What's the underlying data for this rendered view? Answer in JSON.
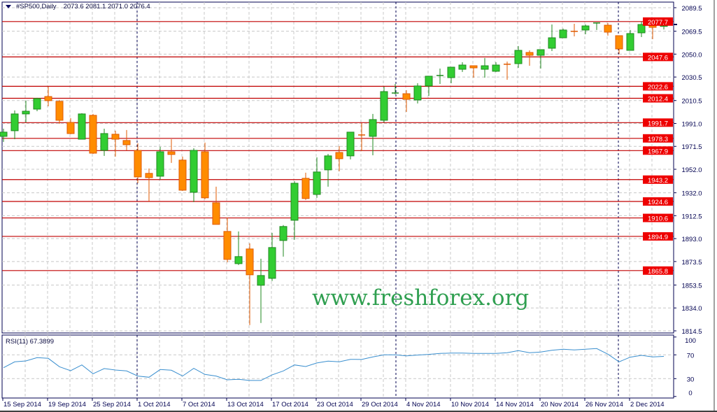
{
  "header": {
    "symbol": "#SP500,Daily",
    "ohlc": "2073.6 2081.1 2071.0 2076.4"
  },
  "watermark": "www.freshforex.org",
  "colors": {
    "bull_fill": "#32cd32",
    "bull_border": "#1f8a1f",
    "bear_fill": "#ff8c00",
    "bear_border": "#e05a00",
    "level_line": "#c00000",
    "level_label_bg": "#ee0000",
    "separator": "#000050",
    "grid": "#c8c8c8",
    "rsi_line": "#3a8fcf",
    "axis_text": "#000050"
  },
  "chart_data": [
    {
      "type": "candlestick",
      "title": "#SP500,Daily",
      "ylim": [
        1814.5,
        2089.5
      ],
      "yticks": [
        "2089.5",
        "2069.5",
        "2050.0",
        "2030.5",
        "2010.5",
        "1991.0",
        "1971.5",
        "1952.0",
        "1932.0",
        "1912.5",
        "1893.0",
        "1873.5",
        "1853.5",
        "1834.0",
        "1814.5"
      ],
      "x_labels": [
        "15 Sep 2014",
        "19 Sep 2014",
        "25 Sep 2014",
        "1 Oct 2014",
        "7 Oct 2014",
        "13 Oct 2014",
        "17 Oct 2014",
        "23 Oct 2014",
        "29 Oct 2014",
        "4 Nov 2014",
        "10 Nov 2014",
        "14 Nov 2014",
        "20 Nov 2014",
        "26 Nov 2014",
        "2 Dec 2014"
      ],
      "x_label_every": 4,
      "period_separators_at": [
        "1 Oct 2014",
        "3 Nov 2014",
        "1 Dec 2014"
      ],
      "levels": [
        "2077.7",
        "2047.6",
        "2022.6",
        "2012.4",
        "1991.7",
        "1978.3",
        "1967.9",
        "1943.2",
        "1924.6",
        "1910.6",
        "1894.9",
        "1865.8"
      ],
      "ohlc": [
        [
          1980.0,
          1986.5,
          1975.3,
          1983.6
        ],
        [
          1984.8,
          2002.1,
          1977.6,
          1999.1
        ],
        [
          1999.1,
          2010.4,
          1991.9,
          2001.4
        ],
        [
          2003.2,
          2012.8,
          2001.4,
          2012.2
        ],
        [
          2013.9,
          2022.3,
          2005.6,
          2010.4
        ],
        [
          2009.8,
          2011.0,
          1990.7,
          1993.7
        ],
        [
          1991.9,
          1995.5,
          1981.8,
          1982.4
        ],
        [
          1977.6,
          1999.7,
          1977.6,
          1999.1
        ],
        [
          1997.9,
          1999.1,
          1965.1,
          1965.7
        ],
        [
          1968.1,
          1986.5,
          1963.4,
          1982.4
        ],
        [
          1981.8,
          1984.8,
          1962.8,
          1977.6
        ],
        [
          1976.5,
          1985.4,
          1968.1,
          1972.9
        ],
        [
          1968.1,
          1974.1,
          1940.1,
          1945.5
        ],
        [
          1948.5,
          1952.7,
          1924.7,
          1944.9
        ],
        [
          1946.1,
          1971.1,
          1943.1,
          1966.9
        ],
        [
          1966.9,
          1977.6,
          1957.4,
          1964.6
        ],
        [
          1959.8,
          1962.8,
          1933.6,
          1934.2
        ],
        [
          1932.4,
          1969.9,
          1924.1,
          1968.1
        ],
        [
          1966.9,
          1974.7,
          1926.5,
          1927.7
        ],
        [
          1923.5,
          1937.2,
          1905.1,
          1905.1
        ],
        [
          1899.1,
          1911.0,
          1872.9,
          1875.3
        ],
        [
          1871.7,
          1899.1,
          1870.5,
          1877.7
        ],
        [
          1884.2,
          1889.0,
          1819.4,
          1862.2
        ],
        [
          1853.3,
          1875.9,
          1821.2,
          1861.6
        ],
        [
          1859.2,
          1897.9,
          1856.9,
          1885.4
        ],
        [
          1891.4,
          1904.5,
          1877.7,
          1903.3
        ],
        [
          1908.6,
          1941.9,
          1892.0,
          1940.1
        ],
        [
          1944.3,
          1949.1,
          1925.9,
          1927.1
        ],
        [
          1930.6,
          1962.2,
          1927.7,
          1949.7
        ],
        [
          1951.5,
          1965.1,
          1937.2,
          1963.4
        ],
        [
          1966.3,
          1971.7,
          1950.3,
          1961.0
        ],
        [
          1963.4,
          1983.6,
          1960.4,
          1983.6
        ],
        [
          1981.2,
          1991.3,
          1967.5,
          1981.0
        ],
        [
          1980.0,
          1999.1,
          1963.9,
          1994.3
        ],
        [
          1993.7,
          2022.3,
          1991.9,
          2018.1
        ],
        [
          2016.8,
          2024.6,
          2015.7,
          2016.9
        ],
        [
          2016.3,
          2019.3,
          2000.8,
          2011.5
        ],
        [
          2011.0,
          2025.2,
          2008.0,
          2022.9
        ],
        [
          2022.9,
          2031.2,
          2014.5,
          2031.2
        ],
        [
          2031.7,
          2037.7,
          2024.6,
          2031.8
        ],
        [
          2030.0,
          2038.9,
          2025.2,
          2038.9
        ],
        [
          2037.1,
          2043.1,
          2034.8,
          2040.7
        ],
        [
          2040.1,
          2040.1,
          2030.0,
          2038.3
        ],
        [
          2037.1,
          2046.7,
          2030.0,
          2040.1
        ],
        [
          2035.4,
          2043.1,
          2034.8,
          2040.7
        ],
        [
          2041.4,
          2043.7,
          2028.2,
          2041.2
        ],
        [
          2041.9,
          2056.8,
          2038.3,
          2053.2
        ],
        [
          2051.4,
          2053.2,
          2040.1,
          2049.0
        ],
        [
          2049.0,
          2053.8,
          2037.7,
          2053.8
        ],
        [
          2055.0,
          2075.2,
          2052.6,
          2063.9
        ],
        [
          2063.9,
          2071.7,
          2063.9,
          2070.5
        ],
        [
          2069.4,
          2075.8,
          2065.1,
          2069.2
        ],
        [
          2070.5,
          2075.2,
          2066.9,
          2074.0
        ],
        [
          2076.4,
          2077.0,
          2070.5,
          2076.5
        ],
        [
          2074.6,
          2076.4,
          2065.7,
          2068.7
        ],
        [
          2065.7,
          2065.7,
          2050.2,
          2054.4
        ],
        [
          2053.2,
          2070.5,
          2053.2,
          2067.5
        ],
        [
          2068.1,
          2077.6,
          2064.5,
          2075.2
        ],
        [
          2074.6,
          2078.8,
          2062.7,
          2072.8
        ],
        [
          2073.6,
          2081.1,
          2071.0,
          2076.4
        ]
      ]
    },
    {
      "type": "line",
      "title": "RSI(11) 67.3899",
      "ylim": [
        0,
        100
      ],
      "yticks": [
        "100",
        "70",
        "30",
        "0"
      ],
      "values": [
        48.4,
        58.2,
        59.8,
        65.3,
        64.1,
        50.0,
        43.3,
        53.1,
        38.2,
        46.9,
        44.5,
        42.9,
        34.3,
        32.4,
        45.3,
        44.1,
        34.3,
        47.3,
        37.1,
        34.3,
        28.0,
        28.8,
        26.9,
        26.9,
        36.3,
        42.9,
        53.1,
        50.4,
        56.3,
        59.4,
        58.2,
        62.5,
        62.2,
        66.5,
        70.0,
        70.0,
        68.4,
        69.6,
        70.8,
        72.4,
        73.1,
        73.1,
        72.4,
        72.4,
        72.4,
        73.5,
        77.1,
        73.5,
        74.7,
        77.8,
        79.4,
        78.2,
        79.4,
        80.6,
        71.2,
        58.2,
        66.1,
        69.2,
        66.5,
        67.4
      ]
    }
  ]
}
